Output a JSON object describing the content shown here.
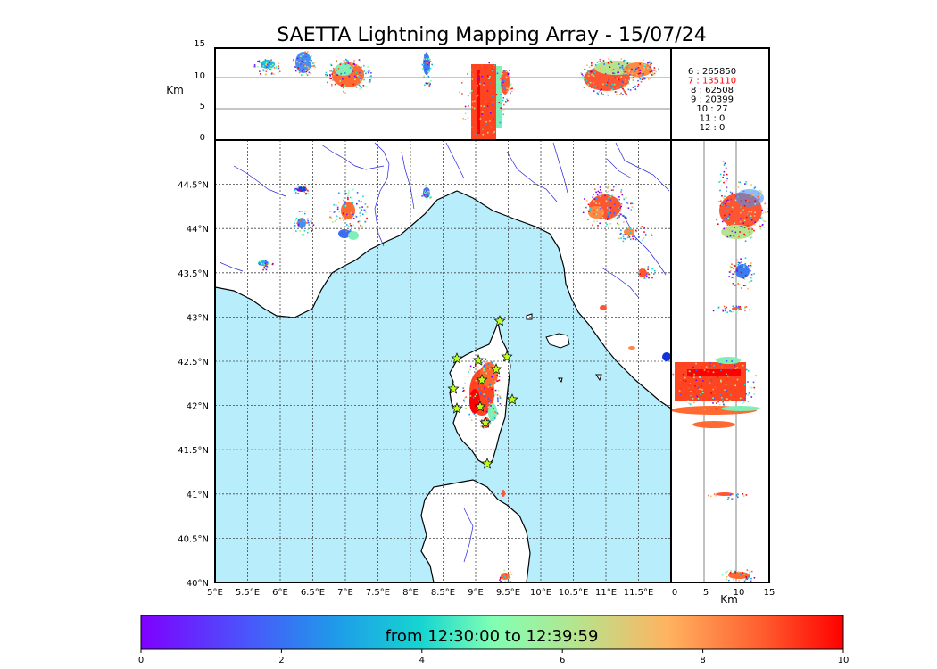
{
  "title": "SAETTA Lightning Mapping Array - 15/07/24",
  "alt_axis_unit": "Km",
  "alt_ticks": [
    "15",
    "10",
    "5",
    "0"
  ],
  "side_axis_unit": "Km",
  "side_ticks": [
    "0",
    "5",
    "10",
    "15"
  ],
  "lon_ticks": [
    "5°E",
    "5.5°E",
    "6°E",
    "6.5°E",
    "7°E",
    "7.5°E",
    "8°E",
    "8.5°E",
    "9°E",
    "9.5°E",
    "10°E",
    "10.5°E",
    "11°E",
    "11.5°E"
  ],
  "lat_ticks": [
    "44.5°N",
    "44°N",
    "43.5°N",
    "43°N",
    "42.5°N",
    "42°N",
    "41.5°N",
    "41°N",
    "40.5°N",
    "40°N"
  ],
  "counts": [
    {
      "label": "6 :  265850",
      "color": "#000000"
    },
    {
      "label": "7 :  135110",
      "color": "#ff0000"
    },
    {
      "label": "8 :   62508",
      "color": "#000000"
    },
    {
      "label": "9 :   20399",
      "color": "#000000"
    },
    {
      "label": "10 :      27",
      "color": "#000000"
    },
    {
      "label": "11 :       0",
      "color": "#000000"
    },
    {
      "label": "12 :       0",
      "color": "#000000"
    }
  ],
  "colorbar": {
    "label": "from 12:30:00 to 12:39:59",
    "ticks": [
      "0",
      "2",
      "4",
      "6",
      "8",
      "10"
    ]
  },
  "colors": {
    "sea": "#b8eefc",
    "land": "#ffffff",
    "river": "#2222dd",
    "accent": "#ff4422"
  }
}
